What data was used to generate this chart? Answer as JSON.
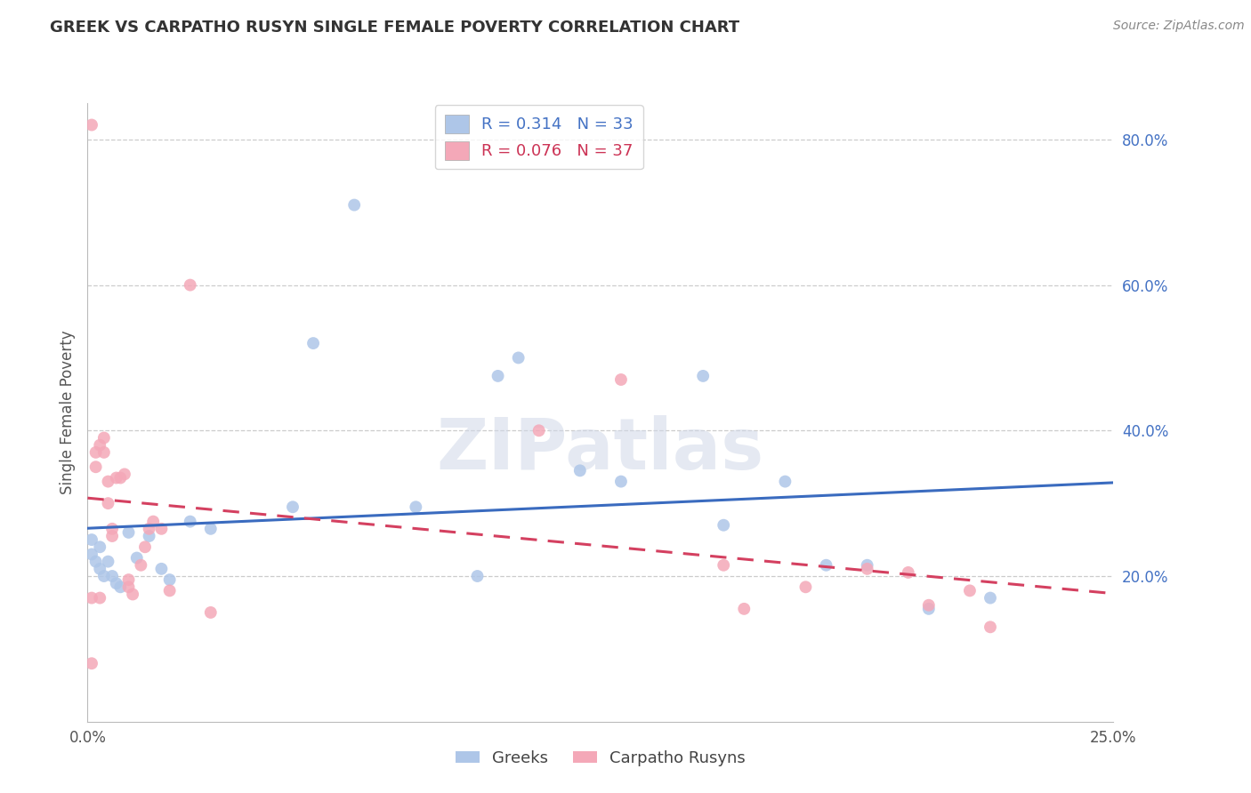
{
  "title": "GREEK VS CARPATHO RUSYN SINGLE FEMALE POVERTY CORRELATION CHART",
  "source": "Source: ZipAtlas.com",
  "ylabel": "Single Female Poverty",
  "xlim": [
    0.0,
    0.25
  ],
  "ylim": [
    0.0,
    0.85
  ],
  "ytick_labels_right": [
    "20.0%",
    "40.0%",
    "60.0%",
    "80.0%"
  ],
  "ytick_positions_right": [
    0.2,
    0.4,
    0.6,
    0.8
  ],
  "greek_R": 0.314,
  "greek_N": 33,
  "carpatho_R": 0.076,
  "carpatho_N": 37,
  "greek_color": "#aec6e8",
  "carpatho_color": "#f4a8b8",
  "greek_line_color": "#3a6bbf",
  "carpatho_line_color": "#d44060",
  "background_color": "#ffffff",
  "watermark": "ZIPatlas",
  "greek_x": [
    0.001,
    0.001,
    0.002,
    0.003,
    0.003,
    0.004,
    0.005,
    0.006,
    0.007,
    0.008,
    0.01,
    0.012,
    0.015,
    0.018,
    0.02,
    0.025,
    0.03,
    0.05,
    0.055,
    0.065,
    0.08,
    0.095,
    0.1,
    0.105,
    0.12,
    0.13,
    0.15,
    0.155,
    0.17,
    0.18,
    0.19,
    0.205,
    0.22
  ],
  "greek_y": [
    0.25,
    0.23,
    0.22,
    0.21,
    0.24,
    0.2,
    0.22,
    0.2,
    0.19,
    0.185,
    0.26,
    0.225,
    0.255,
    0.21,
    0.195,
    0.275,
    0.265,
    0.295,
    0.52,
    0.71,
    0.295,
    0.2,
    0.475,
    0.5,
    0.345,
    0.33,
    0.475,
    0.27,
    0.33,
    0.215,
    0.215,
    0.155,
    0.17
  ],
  "carpatho_x": [
    0.001,
    0.001,
    0.001,
    0.002,
    0.002,
    0.003,
    0.003,
    0.004,
    0.004,
    0.005,
    0.005,
    0.006,
    0.006,
    0.007,
    0.008,
    0.009,
    0.01,
    0.01,
    0.011,
    0.013,
    0.014,
    0.015,
    0.016,
    0.018,
    0.02,
    0.025,
    0.03,
    0.11,
    0.13,
    0.155,
    0.16,
    0.175,
    0.19,
    0.2,
    0.205,
    0.215,
    0.22
  ],
  "carpatho_y": [
    0.82,
    0.17,
    0.08,
    0.35,
    0.37,
    0.38,
    0.17,
    0.37,
    0.39,
    0.33,
    0.3,
    0.255,
    0.265,
    0.335,
    0.335,
    0.34,
    0.185,
    0.195,
    0.175,
    0.215,
    0.24,
    0.265,
    0.275,
    0.265,
    0.18,
    0.6,
    0.15,
    0.4,
    0.47,
    0.215,
    0.155,
    0.185,
    0.21,
    0.205,
    0.16,
    0.18,
    0.13
  ]
}
